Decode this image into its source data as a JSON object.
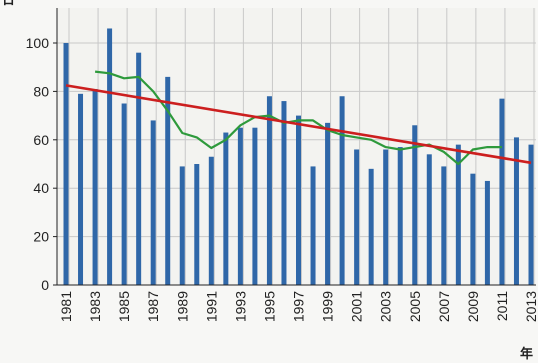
{
  "chart_data": {
    "type": "bar",
    "xlabel": "年",
    "ylabel": "日",
    "ylim": [
      0,
      110
    ],
    "yticks": [
      0,
      20,
      40,
      60,
      80,
      100
    ],
    "grid": true,
    "years": [
      1981,
      1982,
      1983,
      1984,
      1985,
      1986,
      1987,
      1988,
      1989,
      1990,
      1991,
      1992,
      1993,
      1994,
      1995,
      1996,
      1997,
      1998,
      1999,
      2000,
      2001,
      2002,
      2003,
      2004,
      2005,
      2006,
      2007,
      2008,
      2009,
      2010,
      2011,
      2012,
      2013
    ],
    "tick_labels": [
      "1981",
      "1983",
      "1985",
      "1987",
      "1989",
      "1991",
      "1993",
      "1995",
      "1997",
      "1999",
      "2001",
      "2003",
      "2005",
      "2007",
      "2009",
      "2011",
      "2013"
    ],
    "series": [
      {
        "kind": "bar",
        "values": [
          100,
          79,
          81,
          106,
          75,
          96,
          68,
          86,
          49,
          50,
          53,
          63,
          65,
          65,
          78,
          76,
          70,
          49,
          67,
          78,
          56,
          48,
          56,
          57,
          66,
          54,
          49,
          58,
          46,
          43,
          77,
          61,
          58
        ]
      },
      {
        "kind": "line",
        "x": [
          1983,
          1984,
          1985,
          1986,
          1987,
          1988,
          1989,
          1990,
          1991,
          1992,
          1993,
          1994,
          1995,
          1996,
          1997,
          1998,
          1999,
          2000,
          2001,
          2002,
          2003,
          2004,
          2005,
          2006,
          2007,
          2008,
          2009,
          2010,
          2011
        ],
        "values": [
          88.2,
          87.5,
          85.4,
          86.0,
          80.0,
          72.0,
          62.8,
          61.0,
          56.6,
          60.0,
          66.0,
          69.4,
          70.0,
          67.0,
          68.0,
          68.0,
          64.0,
          62.0,
          61.0,
          60.0,
          57.0,
          56.0,
          57.0,
          58.0,
          55.0,
          50.0,
          56.0,
          57.0,
          57.0
        ]
      },
      {
        "kind": "trend",
        "x": [
          1981,
          2013
        ],
        "values": [
          82.5,
          50.5
        ]
      }
    ],
    "colors": {
      "bar": "#2f67a8",
      "moving_average": "#2e9a3c",
      "trend": "#cc1f1f",
      "grid": "#c8c8c8",
      "axis": "#222222"
    }
  }
}
